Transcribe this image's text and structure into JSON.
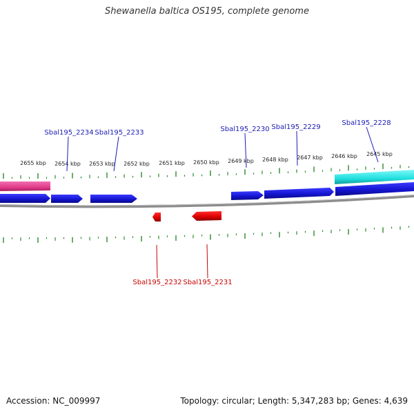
{
  "title": "Shewanella baltica OS195, complete genome",
  "footer": {
    "accession": "Accession: NC_009997",
    "summary": "Topology: circular; Length: 5,347,283 bp; Genes: 4,639"
  },
  "scale": {
    "unit": "kbp",
    "labels": [
      "2655 kbp",
      "2654 kbp",
      "2653 kbp",
      "2652 kbp",
      "2651 kbp",
      "2650 kbp",
      "2649 kbp",
      "2648 kbp",
      "2647 kbp",
      "2646 kbp",
      "2645 kbp"
    ]
  },
  "gene_labels": {
    "forward": [
      "Sbal195_2234",
      "Sbal195_2233",
      "Sbal195_2230",
      "Sbal195_2229",
      "Sbal195_2228"
    ],
    "reverse": [
      "Sbal195_2232",
      "Sbal195_2231"
    ]
  },
  "colors": {
    "forward_gene": "#1a1adb",
    "reverse_gene": "#e60000",
    "forward_label": "#1a1ab4",
    "reverse_label": "#c80000",
    "tick": "#2a8a2a",
    "backbone": "#8c8c8c",
    "pink_feature": "#e8488e",
    "cyan_feature": "#22e0e0"
  }
}
